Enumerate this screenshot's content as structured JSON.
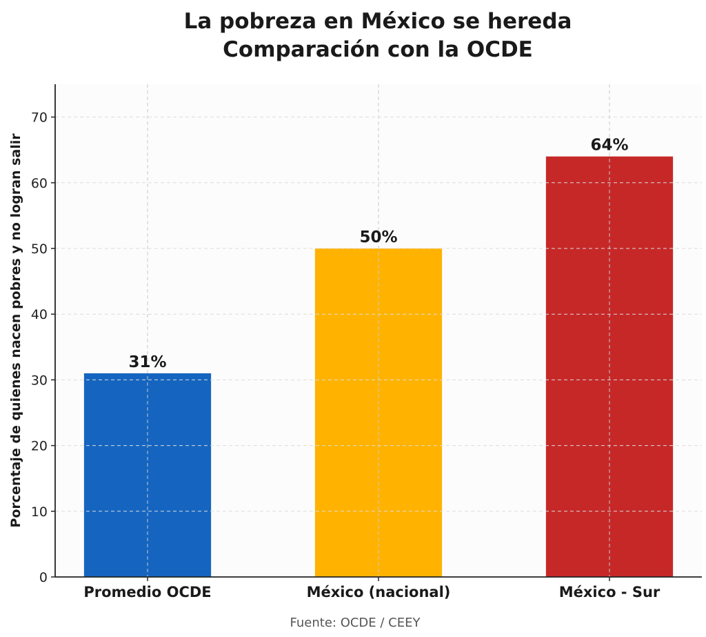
{
  "chart_data": {
    "type": "bar",
    "title": "La pobreza en México se hereda",
    "subtitle": "Comparación con la OCDE",
    "categories": [
      "Promedio OCDE",
      "México (nacional)",
      "México - Sur"
    ],
    "values": [
      31,
      50,
      64
    ],
    "data_labels": [
      "31%",
      "50%",
      "64%"
    ],
    "colors": [
      "#1565C0",
      "#FFB300",
      "#C62828"
    ],
    "xlabel": "",
    "ylabel": "Porcentaje de quienes nacen pobres y no logran salir",
    "ylim": [
      0,
      75
    ],
    "yticks": [
      0,
      10,
      20,
      30,
      40,
      50,
      60,
      70
    ],
    "grid": true,
    "source": "Fuente: OCDE / CEEY"
  }
}
